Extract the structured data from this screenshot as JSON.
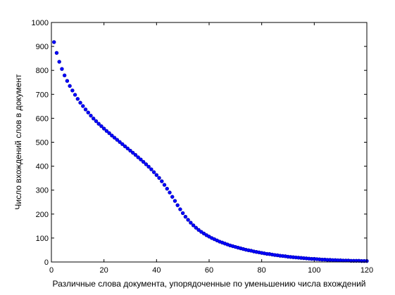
{
  "chart_data": {
    "type": "scatter",
    "title": "",
    "xlabel": "Различные слова документа, упорядоченные по уменьшению числа вхождений",
    "ylabel": "Число вхождений слов в документ",
    "xlim": [
      0,
      120
    ],
    "ylim": [
      0,
      1000
    ],
    "xticks": [
      0,
      20,
      40,
      60,
      80,
      100,
      120
    ],
    "yticks": [
      0,
      100,
      200,
      300,
      400,
      500,
      600,
      700,
      800,
      900,
      1000
    ],
    "grid": false,
    "legend": "none",
    "marker_color": "#0000ff",
    "series": [
      {
        "x": [
          1,
          2,
          3,
          4,
          5,
          6,
          7,
          8,
          9,
          10,
          11,
          12,
          13,
          14,
          15,
          16,
          17,
          18,
          19,
          20,
          21,
          22,
          23,
          24,
          25,
          26,
          27,
          28,
          29,
          30,
          31,
          32,
          33,
          34,
          35,
          36,
          37,
          38,
          39,
          40,
          41,
          42,
          43,
          44,
          45,
          46,
          47,
          48,
          49,
          50,
          51,
          52,
          53,
          54,
          55,
          56,
          57,
          58,
          59,
          60,
          61,
          62,
          63,
          64,
          65,
          66,
          67,
          68,
          69,
          70,
          71,
          72,
          73,
          74,
          75,
          76,
          77,
          78,
          79,
          80,
          81,
          82,
          83,
          84,
          85,
          86,
          87,
          88,
          89,
          90,
          91,
          92,
          93,
          94,
          95,
          96,
          97,
          98,
          99,
          100,
          101,
          102,
          103,
          104,
          105,
          106,
          107,
          108,
          109,
          110,
          111,
          112,
          113,
          114,
          115,
          116,
          117,
          118,
          119,
          120
        ],
        "y": [
          918,
          873,
          836,
          806,
          779,
          756,
          735,
          716,
          698,
          681,
          665,
          651,
          637,
          624,
          611,
          599,
          588,
          577,
          567,
          557,
          547,
          538,
          528,
          519,
          510,
          501,
          492,
          483,
          474,
          465,
          456,
          447,
          437,
          428,
          418,
          408,
          398,
          387,
          375,
          363,
          351,
          337,
          322,
          306,
          290,
          272,
          255,
          237,
          220,
          204,
          189,
          176,
          164,
          153,
          143,
          134,
          126,
          119,
          112,
          106,
          100,
          95,
          90,
          85,
          81,
          77,
          73,
          69,
          66,
          63,
          60,
          57,
          54,
          51,
          49,
          47,
          44,
          42,
          40,
          38,
          36,
          34,
          33,
          31,
          29,
          28,
          26,
          25,
          24,
          22,
          21,
          20,
          19,
          18,
          17,
          16,
          15,
          14,
          13,
          13,
          12,
          11,
          10,
          10,
          9,
          9,
          8,
          8,
          7,
          7,
          6,
          6,
          6,
          5,
          5,
          5,
          5,
          4,
          4,
          4
        ]
      }
    ]
  }
}
